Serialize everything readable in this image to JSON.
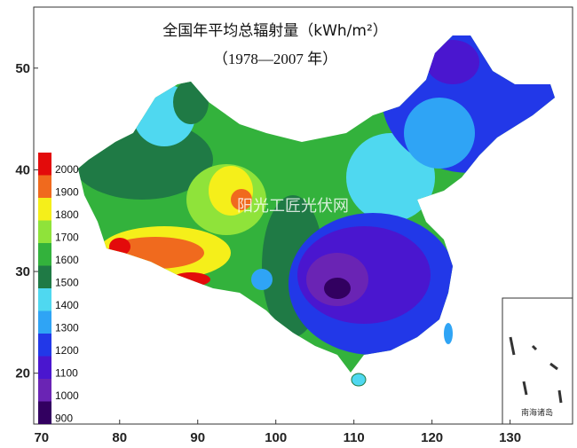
{
  "chart_data": {
    "type": "map",
    "title": "全国年平均总辐射量（kWh/m²）",
    "subtitle": "（1978—2007 年）",
    "watermark": "阳光工匠光伏网",
    "inset_label": "南海诸岛",
    "xlim": [
      69,
      138
    ],
    "ylim": [
      15,
      56
    ],
    "xticks": [
      70,
      80,
      90,
      100,
      110,
      120,
      130
    ],
    "yticks": [
      20,
      30,
      40,
      50
    ],
    "legend": [
      {
        "value": 2000,
        "color": "#e30b0b"
      },
      {
        "value": 1900,
        "color": "#f06a1e"
      },
      {
        "value": 1800,
        "color": "#f5ef1a"
      },
      {
        "value": 1700,
        "color": "#8fe33a"
      },
      {
        "value": 1600,
        "color": "#33b23c"
      },
      {
        "value": 1500,
        "color": "#1f7a45"
      },
      {
        "value": 1400,
        "color": "#4fd8f0"
      },
      {
        "value": 1300,
        "color": "#2fa4f5"
      },
      {
        "value": 1200,
        "color": "#2238e8"
      },
      {
        "value": 1100,
        "color": "#4a16cf"
      },
      {
        "value": 1000,
        "color": "#6a24b4"
      },
      {
        "value": 900,
        "color": "#320060"
      }
    ]
  }
}
